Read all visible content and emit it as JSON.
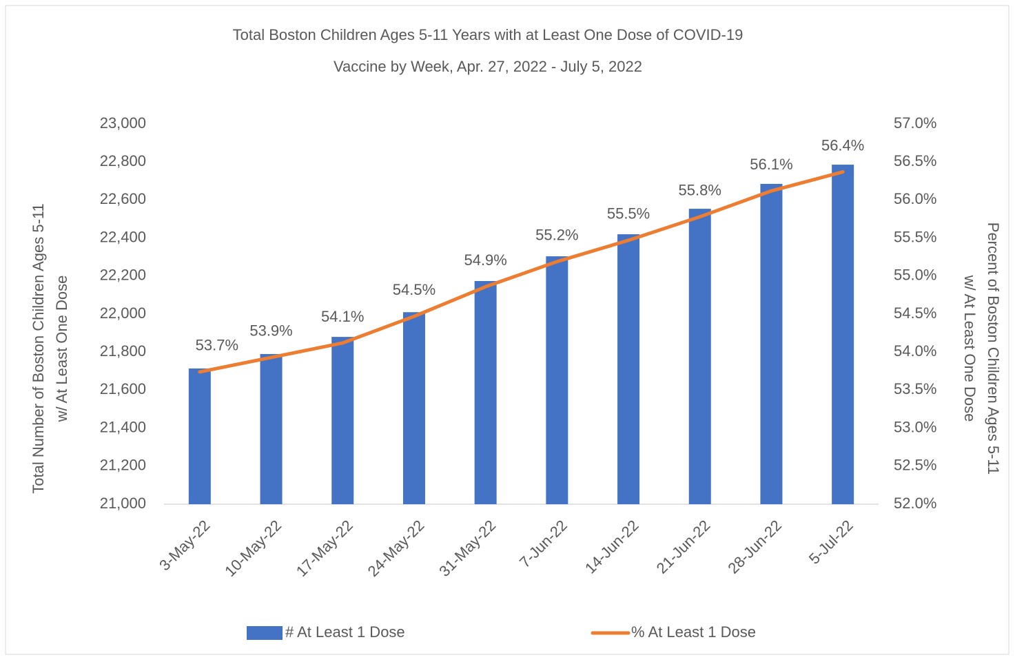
{
  "chart_data": {
    "type": "bar_line",
    "title": [
      "Total Boston Children Ages 5-11 Years with at Least One Dose of COVID-19",
      "Vaccine by Week, Apr. 27, 2022 - July 5, 2022"
    ],
    "y_label": [
      "Total Number of Boston Children Ages 5-11",
      "w/ At Least One Dose"
    ],
    "y2_label": [
      "Percent of Boston Children  Ages 5-11",
      "w/ At Least One Dose"
    ],
    "categories": [
      "3-May-22",
      "10-May-22",
      "17-May-22",
      "24-May-22",
      "31-May-22",
      "7-Jun-22",
      "14-Jun-22",
      "21-Jun-22",
      "28-Jun-22",
      "5-Jul-22"
    ],
    "series": [
      {
        "name": "# At Least 1 Dose",
        "type": "bar",
        "color": "#4472c4",
        "values": [
          21714,
          21790,
          21880,
          22010,
          22174,
          22304,
          22420,
          22554,
          22685,
          22786
        ]
      },
      {
        "name": "% At Least 1 Dose",
        "type": "line",
        "axis": "y2",
        "color": "#ed7d31",
        "values": [
          53.74,
          53.93,
          54.12,
          54.47,
          54.86,
          55.19,
          55.47,
          55.78,
          56.12,
          56.37
        ],
        "value_labels": [
          "53.7%",
          "53.9%",
          "54.1%",
          "54.5%",
          "54.9%",
          "55.2%",
          "55.5%",
          "55.8%",
          "56.1%",
          "56.4%"
        ]
      }
    ],
    "ylim": [
      21000,
      23000
    ],
    "yticks": [
      {
        "value": 21000,
        "label": "21,000"
      },
      {
        "value": 21200,
        "label": "21,200"
      },
      {
        "value": 21400,
        "label": "21,400"
      },
      {
        "value": 21600,
        "label": "21,600"
      },
      {
        "value": 21800,
        "label": "21,800"
      },
      {
        "value": 22000,
        "label": "22,000"
      },
      {
        "value": 22200,
        "label": "22,200"
      },
      {
        "value": 22400,
        "label": "22,400"
      },
      {
        "value": 22600,
        "label": "22,600"
      },
      {
        "value": 22800,
        "label": "22,800"
      },
      {
        "value": 23000,
        "label": "23,000"
      }
    ],
    "y2lim": [
      52,
      57
    ],
    "y2ticks": [
      {
        "value": 52,
        "label": "52.0%"
      },
      {
        "value": 52.5,
        "label": "52.5%"
      },
      {
        "value": 53,
        "label": "53.0%"
      },
      {
        "value": 53.5,
        "label": "53.5%"
      },
      {
        "value": 54,
        "label": "54.0%"
      },
      {
        "value": 54.5,
        "label": "54.5%"
      },
      {
        "value": 55,
        "label": "55.0%"
      },
      {
        "value": 55.5,
        "label": "55.5%"
      },
      {
        "value": 56,
        "label": "56.0%"
      },
      {
        "value": 56.5,
        "label": "56.5%"
      },
      {
        "value": 57,
        "label": "57.0%"
      }
    ],
    "grid": false,
    "legend": "bottom"
  }
}
